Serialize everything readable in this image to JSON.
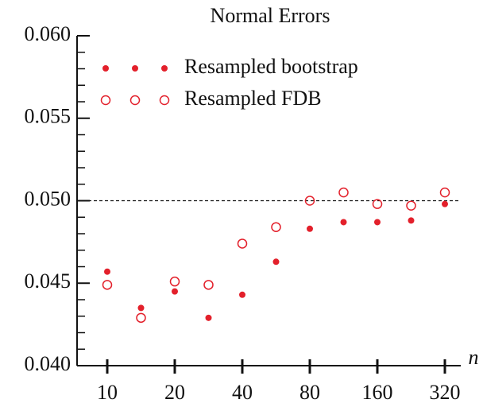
{
  "chart_data": {
    "type": "scatter",
    "title": "Normal Errors",
    "xlabel": "n",
    "categories": [
      "10",
      null,
      "20",
      null,
      "40",
      null,
      "80",
      null,
      "160",
      null,
      "320"
    ],
    "series": [
      {
        "name": "Resampled bootstrap",
        "color": "#e3202b",
        "marker": "filled",
        "values": [
          0.0457,
          0.0435,
          0.0445,
          0.0429,
          0.0443,
          0.0463,
          0.0483,
          0.0487,
          0.0487,
          0.0488,
          0.0498
        ]
      },
      {
        "name": "Resampled FDB",
        "color": "#e3202b",
        "marker": "open",
        "values": [
          0.0449,
          0.0429,
          0.0451,
          0.0449,
          0.0474,
          0.0484,
          0.05,
          0.0505,
          0.0498,
          0.0497,
          0.0505
        ]
      }
    ],
    "ylim": [
      0.04,
      0.06
    ],
    "yticks": [
      {
        "value": 0.04,
        "label": "0.040"
      },
      {
        "value": 0.045,
        "label": "0.045"
      },
      {
        "value": 0.05,
        "label": "0.050"
      },
      {
        "value": 0.055,
        "label": "0.055"
      },
      {
        "value": 0.06,
        "label": "0.060"
      }
    ],
    "yminorticks": [
      0.041,
      0.042,
      0.043,
      0.044,
      0.046,
      0.047,
      0.048,
      0.049,
      0.051,
      0.052,
      0.053,
      0.054,
      0.056,
      0.057,
      0.058,
      0.059
    ],
    "hline": 0.05,
    "legend": "upper left"
  }
}
